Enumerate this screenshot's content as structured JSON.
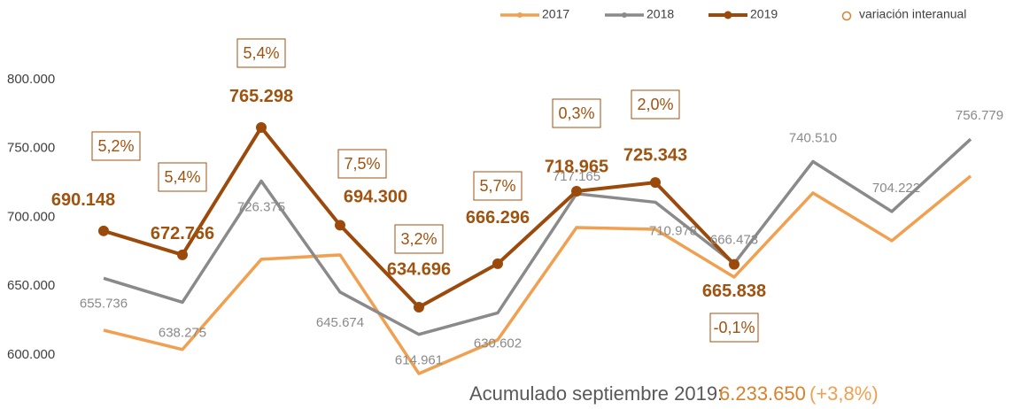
{
  "chart_data": {
    "type": "line",
    "categories": [
      null,
      null,
      null,
      null,
      null,
      null,
      null,
      null,
      null,
      null,
      null,
      null
    ],
    "ylim": [
      580000,
      830000
    ],
    "yticks": [
      {
        "value": 600000,
        "label": "600.000"
      },
      {
        "value": 650000,
        "label": "650.000"
      },
      {
        "value": 700000,
        "label": "700.000"
      },
      {
        "value": 750000,
        "label": "750.000"
      },
      {
        "value": 800000,
        "label": "800.000"
      }
    ],
    "grid": false,
    "legend": "top-right",
    "series": [
      {
        "name": "2017",
        "color": "#f0a050",
        "values": [
          618000,
          604000,
          669500,
          672700,
          586500,
          611000,
          692600,
          691300,
          656600,
          717700,
          683000,
          730000
        ]
      },
      {
        "name": "2018",
        "color": "#8a8a8a",
        "values": [
          655736,
          638275,
          726375,
          645674,
          614961,
          630602,
          717165,
          710978,
          666473,
          740510,
          704222,
          756779
        ],
        "value_labels": [
          "655.736",
          "638.275",
          "726.375",
          "645.674",
          "614.961",
          "630.602",
          "717.165",
          "710.978",
          "666.473",
          "740.510",
          "704.222",
          "756.779"
        ]
      },
      {
        "name": "2019",
        "color": "#9c4a0c",
        "values": [
          690148,
          672766,
          765298,
          694300,
          634696,
          666296,
          718965,
          725343,
          665838,
          null,
          null,
          null
        ],
        "value_labels": [
          "690.148",
          "672.766",
          "765.298",
          "694.300",
          "634.696",
          "666.296",
          "718.965",
          "725.343",
          "665.838",
          null,
          null,
          null
        ]
      },
      {
        "name": "variación interanual",
        "color": "#d9822b",
        "values": [
          5.2,
          5.4,
          5.4,
          7.5,
          3.2,
          5.7,
          0.3,
          2.0,
          -0.1,
          null,
          null,
          null
        ],
        "value_labels": [
          "5,2%",
          "5,4%",
          "5,4%",
          "7,5%",
          "3,2%",
          "5,7%",
          "0,3%",
          "2,0%",
          "-0,1%",
          null,
          null,
          null
        ]
      }
    ],
    "annotations": {
      "total_label": "Acumulado septiembre 2019:",
      "total_value": "6.233.650",
      "total_change": "(+3,8%)"
    }
  }
}
